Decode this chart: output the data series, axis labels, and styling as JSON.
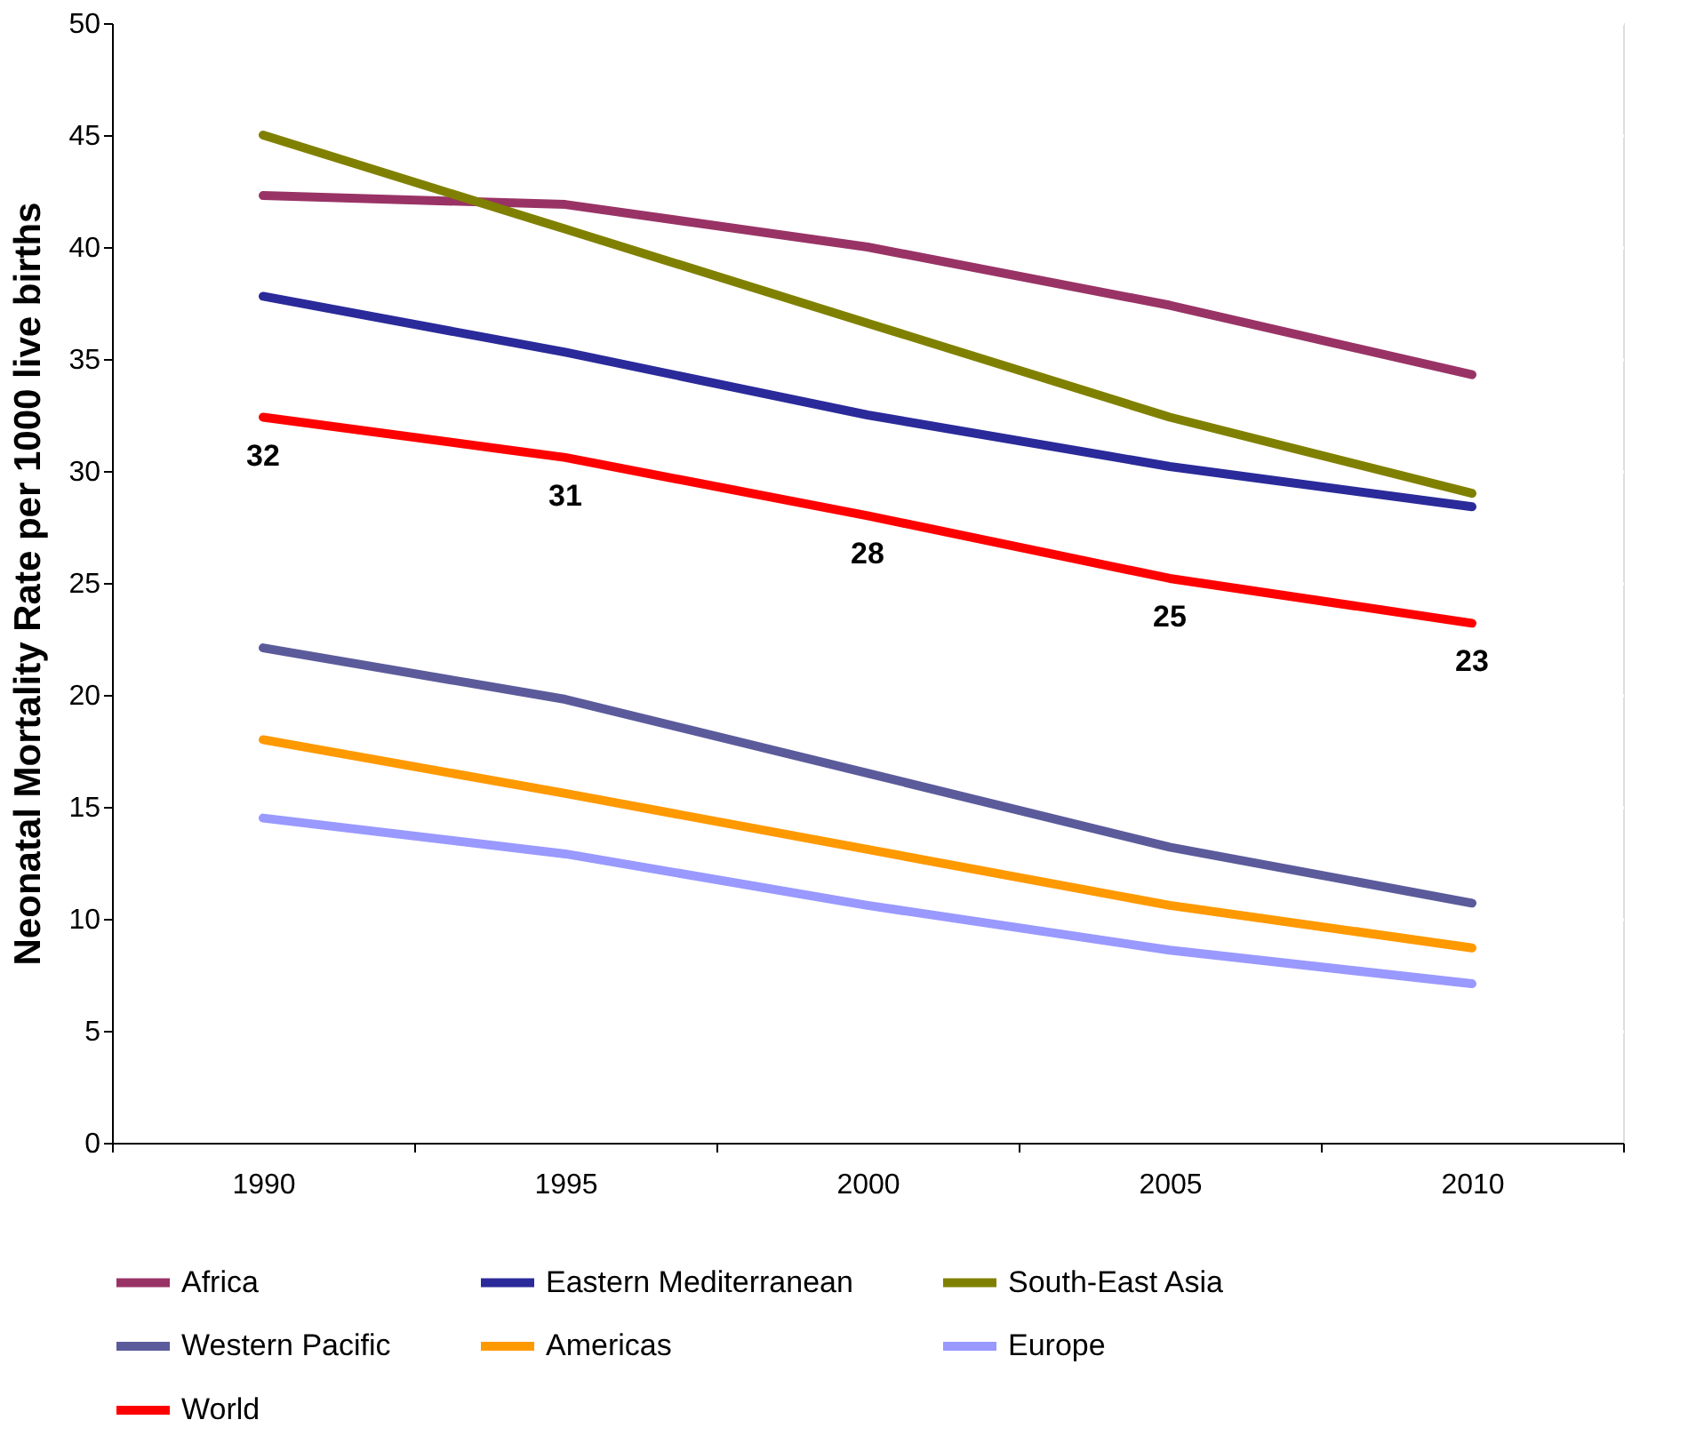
{
  "chart_data": {
    "type": "line",
    "ylabel": "Neonatal Mortality Rate per 1000 live births",
    "categories": [
      "1990",
      "1995",
      "2000",
      "2005",
      "2010"
    ],
    "ylim": [
      0,
      50
    ],
    "yticks": [
      0,
      5,
      10,
      15,
      20,
      25,
      30,
      35,
      40,
      45,
      50
    ],
    "grid": "y",
    "legend": "bottom",
    "marker": "none",
    "line_style": "solid",
    "series": [
      {
        "name": "Africa",
        "color": "#993366",
        "values": [
          42.3,
          41.9,
          40.0,
          37.4,
          34.3
        ]
      },
      {
        "name": "Eastern Mediterranean",
        "color": "#2a2a9a",
        "values": [
          37.8,
          35.3,
          32.5,
          30.2,
          28.4
        ]
      },
      {
        "name": "South-East Asia",
        "color": "#808000",
        "values": [
          45.0,
          40.8,
          36.6,
          32.4,
          29.0
        ]
      },
      {
        "name": "Western Pacific",
        "color": "#5b5b9b",
        "values": [
          22.1,
          19.8,
          16.5,
          13.2,
          10.7
        ]
      },
      {
        "name": "Americas",
        "color": "#ff9900",
        "values": [
          18.0,
          15.6,
          13.1,
          10.6,
          8.7
        ]
      },
      {
        "name": "Europe",
        "color": "#9999ff",
        "values": [
          14.5,
          12.9,
          10.6,
          8.6,
          7.1
        ]
      },
      {
        "name": "World",
        "color": "#ff0000",
        "values": [
          32.4,
          30.6,
          28.0,
          25.2,
          23.2
        ],
        "value_labels": [
          "32",
          "31",
          "28",
          "25",
          "23"
        ]
      }
    ]
  }
}
